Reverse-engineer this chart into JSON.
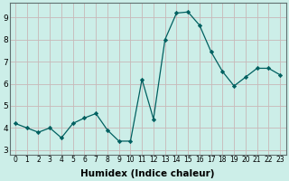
{
  "x": [
    0,
    1,
    2,
    3,
    4,
    5,
    6,
    7,
    8,
    9,
    10,
    11,
    12,
    13,
    14,
    15,
    16,
    17,
    18,
    19,
    20,
    21,
    22,
    23
  ],
  "y": [
    4.2,
    4.0,
    3.8,
    4.0,
    3.55,
    4.2,
    4.45,
    4.65,
    3.9,
    3.4,
    3.4,
    6.2,
    4.4,
    8.0,
    9.2,
    9.25,
    8.65,
    7.45,
    6.55,
    5.9,
    6.3,
    6.7,
    6.7,
    6.4
  ],
  "line_color": "#006060",
  "marker": "D",
  "marker_size": 2.2,
  "bg_color": "#cceee8",
  "grid_color": "#c8b8b8",
  "xlabel": "Humidex (Indice chaleur)",
  "xlabel_fontsize": 7.5,
  "ylabel_ticks": [
    3,
    4,
    5,
    6,
    7,
    8,
    9
  ],
  "xlim": [
    -0.5,
    23.5
  ],
  "ylim": [
    2.8,
    9.65
  ],
  "tick_fontsize": 5.5,
  "ytick_fontsize": 6.5,
  "linewidth": 0.9
}
